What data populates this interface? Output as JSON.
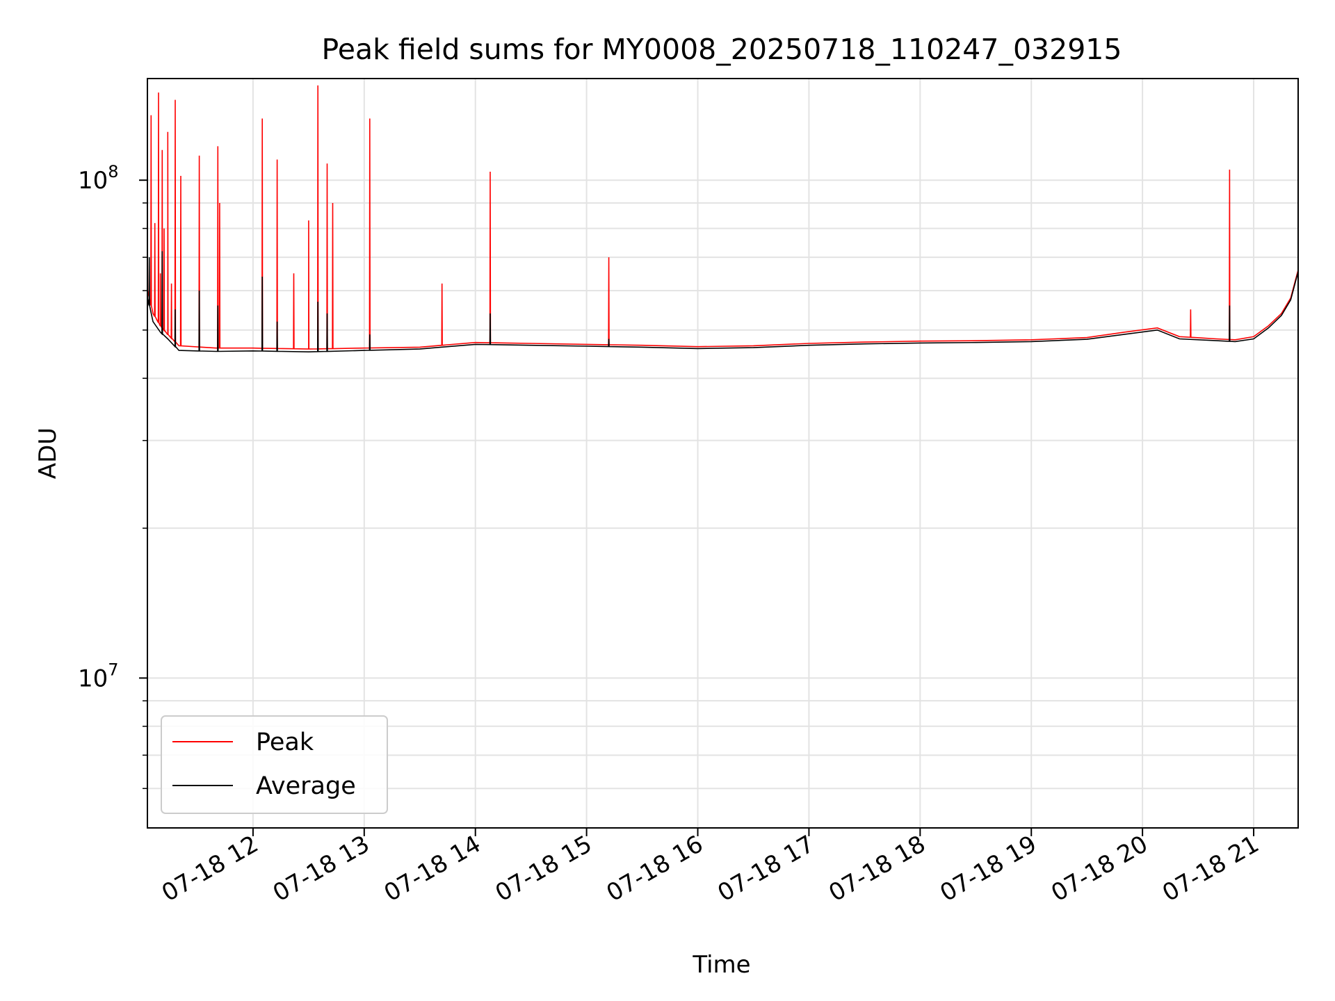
{
  "chart_data": {
    "type": "line",
    "title": "Peak field sums for MY0008_20250718_110247_032915",
    "xlabel": "Time",
    "ylabel": "ADU",
    "yscale": "log",
    "ylim": [
      5000000,
      160000000
    ],
    "xlim": [
      "2025-07-18 11:03",
      "2025-07-18 21:24"
    ],
    "x_tick_labels": [
      "07-18 12",
      "07-18 13",
      "07-18 14",
      "07-18 15",
      "07-18 16",
      "07-18 17",
      "07-18 18",
      "07-18 19",
      "07-18 20",
      "07-18 21"
    ],
    "x_tick_times": [
      "2025-07-18 12:00",
      "2025-07-18 13:00",
      "2025-07-18 14:00",
      "2025-07-18 15:00",
      "2025-07-18 16:00",
      "2025-07-18 17:00",
      "2025-07-18 18:00",
      "2025-07-18 19:00",
      "2025-07-18 20:00",
      "2025-07-18 21:00"
    ],
    "y_major_ticks": [
      {
        "value": 10000000,
        "base": "10",
        "exp": "7"
      },
      {
        "value": 100000000,
        "base": "10",
        "exp": "8"
      }
    ],
    "y_minor_ticks": [
      6000000,
      7000000,
      8000000,
      9000000,
      20000000,
      30000000,
      40000000,
      50000000,
      60000000,
      70000000,
      80000000,
      90000000
    ],
    "grid": true,
    "legend_position": "lower-left",
    "series": [
      {
        "name": "Peak",
        "color": "#ff0000",
        "baseline": [
          [
            "2025-07-18 11:03",
            60000000
          ],
          [
            "2025-07-18 11:06",
            54000000
          ],
          [
            "2025-07-18 11:10",
            51000000
          ],
          [
            "2025-07-18 11:14",
            49000000
          ],
          [
            "2025-07-18 11:20",
            46500000
          ],
          [
            "2025-07-18 11:40",
            46000000
          ],
          [
            "2025-07-18 12:00",
            46000000
          ],
          [
            "2025-07-18 12:30",
            45800000
          ],
          [
            "2025-07-18 13:00",
            46000000
          ],
          [
            "2025-07-18 13:30",
            46200000
          ],
          [
            "2025-07-18 13:45",
            46700000
          ],
          [
            "2025-07-18 14:00",
            47200000
          ],
          [
            "2025-07-18 14:30",
            47000000
          ],
          [
            "2025-07-18 15:00",
            46800000
          ],
          [
            "2025-07-18 15:30",
            46600000
          ],
          [
            "2025-07-18 16:00",
            46300000
          ],
          [
            "2025-07-18 16:30",
            46500000
          ],
          [
            "2025-07-18 17:00",
            47000000
          ],
          [
            "2025-07-18 17:30",
            47300000
          ],
          [
            "2025-07-18 18:00",
            47500000
          ],
          [
            "2025-07-18 18:30",
            47600000
          ],
          [
            "2025-07-18 19:00",
            47800000
          ],
          [
            "2025-07-18 19:30",
            48300000
          ],
          [
            "2025-07-18 19:50",
            49500000
          ],
          [
            "2025-07-18 20:08",
            50500000
          ],
          [
            "2025-07-18 20:20",
            48500000
          ],
          [
            "2025-07-18 20:40",
            48000000
          ],
          [
            "2025-07-18 20:50",
            47800000
          ],
          [
            "2025-07-18 21:00",
            48500000
          ],
          [
            "2025-07-18 21:08",
            51000000
          ],
          [
            "2025-07-18 21:15",
            54000000
          ],
          [
            "2025-07-18 21:20",
            58000000
          ],
          [
            "2025-07-18 21:24",
            66000000
          ]
        ],
        "spikes": [
          [
            "2025-07-18 11:03",
            80000000
          ],
          [
            "2025-07-18 11:05",
            135000000
          ],
          [
            "2025-07-18 11:07",
            82000000
          ],
          [
            "2025-07-18 11:09",
            150000000
          ],
          [
            "2025-07-18 11:10",
            65000000
          ],
          [
            "2025-07-18 11:11",
            115000000
          ],
          [
            "2025-07-18 11:12",
            80000000
          ],
          [
            "2025-07-18 11:14",
            125000000
          ],
          [
            "2025-07-18 11:16",
            62000000
          ],
          [
            "2025-07-18 11:18",
            145000000
          ],
          [
            "2025-07-18 11:21",
            102000000
          ],
          [
            "2025-07-18 11:31",
            112000000
          ],
          [
            "2025-07-18 11:41",
            117000000
          ],
          [
            "2025-07-18 11:42",
            90000000
          ],
          [
            "2025-07-18 12:05",
            133000000
          ],
          [
            "2025-07-18 12:13",
            110000000
          ],
          [
            "2025-07-18 12:22",
            65000000
          ],
          [
            "2025-07-18 12:30",
            83000000
          ],
          [
            "2025-07-18 12:35",
            155000000
          ],
          [
            "2025-07-18 12:40",
            108000000
          ],
          [
            "2025-07-18 12:43",
            90000000
          ],
          [
            "2025-07-18 13:03",
            133000000
          ],
          [
            "2025-07-18 13:42",
            62000000
          ],
          [
            "2025-07-18 14:08",
            104000000
          ],
          [
            "2025-07-18 15:12",
            70000000
          ],
          [
            "2025-07-18 20:26",
            55000000
          ],
          [
            "2025-07-18 20:47",
            105000000
          ]
        ]
      },
      {
        "name": "Average",
        "color": "#000000",
        "baseline": [
          [
            "2025-07-18 11:03",
            58000000
          ],
          [
            "2025-07-18 11:06",
            52000000
          ],
          [
            "2025-07-18 11:10",
            49500000
          ],
          [
            "2025-07-18 11:14",
            48000000
          ],
          [
            "2025-07-18 11:20",
            45500000
          ],
          [
            "2025-07-18 11:40",
            45300000
          ],
          [
            "2025-07-18 12:00",
            45400000
          ],
          [
            "2025-07-18 12:30",
            45200000
          ],
          [
            "2025-07-18 13:00",
            45500000
          ],
          [
            "2025-07-18 13:30",
            45800000
          ],
          [
            "2025-07-18 13:45",
            46300000
          ],
          [
            "2025-07-18 14:00",
            46800000
          ],
          [
            "2025-07-18 14:30",
            46600000
          ],
          [
            "2025-07-18 15:00",
            46400000
          ],
          [
            "2025-07-18 15:30",
            46200000
          ],
          [
            "2025-07-18 16:00",
            45900000
          ],
          [
            "2025-07-18 16:30",
            46100000
          ],
          [
            "2025-07-18 17:00",
            46600000
          ],
          [
            "2025-07-18 17:30",
            46900000
          ],
          [
            "2025-07-18 18:00",
            47100000
          ],
          [
            "2025-07-18 18:30",
            47200000
          ],
          [
            "2025-07-18 19:00",
            47400000
          ],
          [
            "2025-07-18 19:30",
            47900000
          ],
          [
            "2025-07-18 19:50",
            49000000
          ],
          [
            "2025-07-18 20:08",
            50000000
          ],
          [
            "2025-07-18 20:20",
            48000000
          ],
          [
            "2025-07-18 20:40",
            47600000
          ],
          [
            "2025-07-18 20:50",
            47400000
          ],
          [
            "2025-07-18 21:00",
            48000000
          ],
          [
            "2025-07-18 21:08",
            50500000
          ],
          [
            "2025-07-18 21:15",
            53500000
          ],
          [
            "2025-07-18 21:20",
            57500000
          ],
          [
            "2025-07-18 21:24",
            65500000
          ]
        ],
        "spikes": [
          [
            "2025-07-18 11:04",
            70000000
          ],
          [
            "2025-07-18 11:11",
            72000000
          ],
          [
            "2025-07-18 11:18",
            55000000
          ],
          [
            "2025-07-18 11:31",
            60000000
          ],
          [
            "2025-07-18 11:41",
            56000000
          ],
          [
            "2025-07-18 12:05",
            64000000
          ],
          [
            "2025-07-18 12:13",
            52000000
          ],
          [
            "2025-07-18 12:35",
            57000000
          ],
          [
            "2025-07-18 12:40",
            54000000
          ],
          [
            "2025-07-18 13:03",
            49000000
          ],
          [
            "2025-07-18 14:08",
            54000000
          ],
          [
            "2025-07-18 15:12",
            48000000
          ],
          [
            "2025-07-18 20:47",
            56000000
          ]
        ]
      }
    ]
  }
}
